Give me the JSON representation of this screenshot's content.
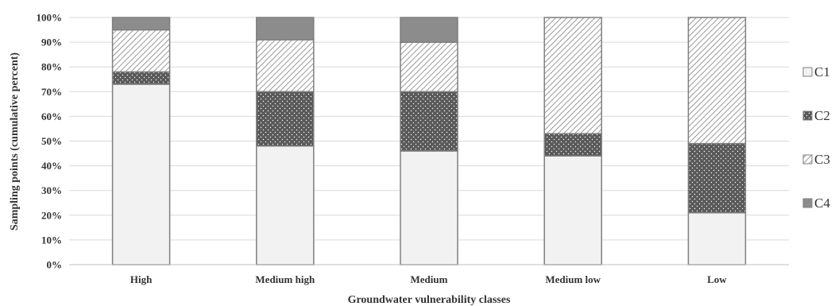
{
  "chart_data": {
    "type": "bar",
    "stacked": true,
    "categories": [
      "High",
      "Medium high",
      "Medium",
      "Medium low",
      "Low"
    ],
    "series": [
      {
        "name": "C1",
        "values": [
          73,
          48,
          46,
          44,
          21
        ],
        "color": "#f2f2f2",
        "pattern": "solid-light"
      },
      {
        "name": "C2",
        "values": [
          5,
          22,
          24,
          9,
          28
        ],
        "color": "#595959",
        "pattern": "dots"
      },
      {
        "name": "C3",
        "values": [
          17,
          21,
          20,
          47,
          51
        ],
        "color": "#ffffff",
        "pattern": "diagonal-stripes"
      },
      {
        "name": "C4",
        "values": [
          5,
          9,
          10,
          0,
          0
        ],
        "color": "#8c8c8c",
        "pattern": "solid-dark"
      }
    ],
    "xlabel": "Groundwater vulnerability classes",
    "ylabel": "Sampling points (cumulative percent)",
    "ylim": [
      0,
      100
    ],
    "yticks": [
      "0%",
      "10%",
      "20%",
      "30%",
      "40%",
      "50%",
      "60%",
      "70%",
      "80%",
      "90%",
      "100%"
    ],
    "grid": true,
    "legend_position": "right"
  }
}
